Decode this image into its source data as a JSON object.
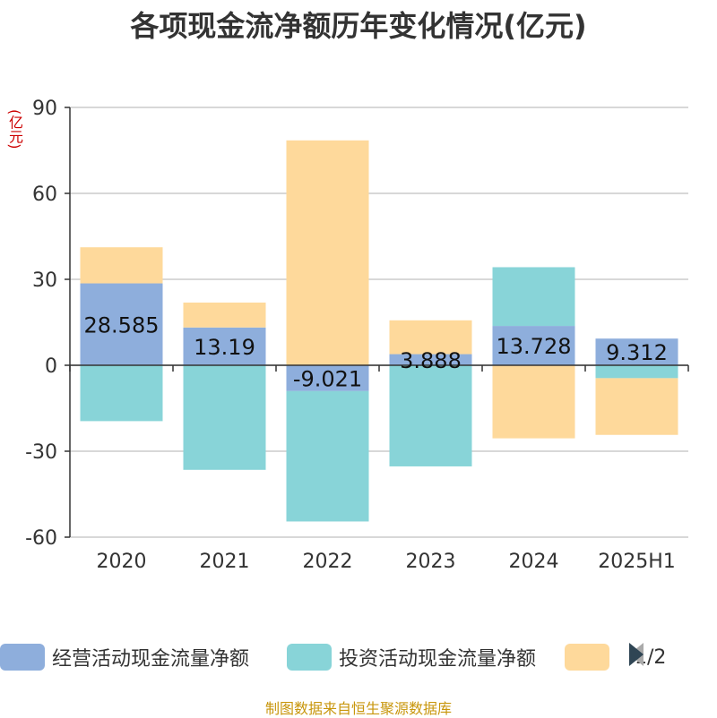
{
  "chart_data": {
    "type": "bar",
    "stacked": true,
    "title": "各项现金流净额历年变化情况(亿元)",
    "unit_label": "(亿元)",
    "categories": [
      "2020",
      "2021",
      "2022",
      "2023",
      "2024",
      "2025H1"
    ],
    "ylim": [
      -60,
      90
    ],
    "yticks": [
      90,
      60,
      30,
      0,
      -30,
      -60
    ],
    "grid": true,
    "series": [
      {
        "name": "经营活动现金流量净额",
        "color": "#8eaedc",
        "values": [
          28.585,
          13.19,
          -9.021,
          3.888,
          13.728,
          9.312
        ]
      },
      {
        "name": "投资活动现金流量净额",
        "color": "#88d4d8",
        "values": [
          -19.5,
          -36.5,
          -45.5,
          -35.3,
          20.5,
          -4.5
        ]
      },
      {
        "name": "",
        "color": "#fed99b",
        "values": [
          12.6,
          8.7,
          78.5,
          11.8,
          -25.5,
          -19.8
        ]
      }
    ],
    "data_labels": [
      "28.585",
      "13.19",
      "-9.021",
      "3.888",
      "13.728",
      "9.312"
    ],
    "legend_position": "bottom"
  },
  "legend": {
    "page": "1/2",
    "colors": {
      "arrow_inactive": "#aaaaaa",
      "arrow_active": "#2f4554"
    }
  },
  "footer": "制图数据来自恒生聚源数据库"
}
